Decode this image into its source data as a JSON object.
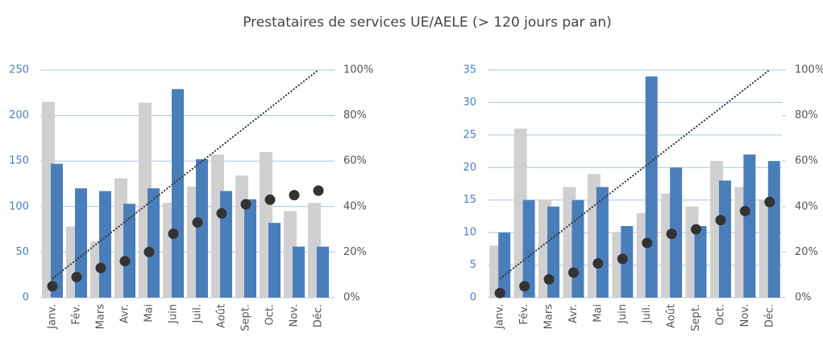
{
  "title": "Prestataires de services UE/AELE (> 120 jours par an)",
  "chart_data": [
    {
      "type": "bar",
      "categories": [
        "Janv.",
        "Fév.",
        "Mars",
        "Avr.",
        "Mai",
        "Juin",
        "Juil.",
        "Août",
        "Sept.",
        "Oct.",
        "Nov.",
        "Déc."
      ],
      "ylim": [
        0,
        250
      ],
      "yticks": [
        0,
        50,
        100,
        150,
        200,
        250
      ],
      "y2lim": [
        0,
        100
      ],
      "y2ticks": [
        {
          "value": 0,
          "label": "0%"
        },
        {
          "value": 20,
          "label": "20%"
        },
        {
          "value": 40,
          "label": "40%"
        },
        {
          "value": 60,
          "label": "60%"
        },
        {
          "value": 80,
          "label": "80%"
        },
        {
          "value": 100,
          "label": "100%"
        }
      ],
      "grid": true,
      "series": [
        {
          "type": "bar",
          "color": "#d0d0d0",
          "values": [
            215,
            78,
            62,
            131,
            214,
            104,
            122,
            157,
            134,
            160,
            95,
            104
          ]
        },
        {
          "type": "bar",
          "color": "#4a7ebb",
          "values": [
            147,
            120,
            117,
            103,
            120,
            229,
            152,
            117,
            108,
            82,
            56,
            56
          ]
        },
        {
          "type": "line",
          "axis": "y2",
          "color": "#333333",
          "values": [
            8.3,
            16.7,
            25,
            33.3,
            41.7,
            50,
            58.3,
            66.7,
            75,
            83.3,
            91.7,
            100
          ]
        },
        {
          "type": "scatter",
          "axis": "y2",
          "color": "#333333",
          "values": [
            5,
            9,
            13,
            16,
            20,
            28,
            33,
            37,
            41,
            43,
            45,
            47
          ]
        }
      ]
    },
    {
      "type": "bar",
      "categories": [
        "Janv.",
        "Fév.",
        "Mars",
        "Avr.",
        "Mai",
        "Juin",
        "Juil.",
        "Août",
        "Sept.",
        "Oct.",
        "Nov.",
        "Déc."
      ],
      "ylim": [
        0,
        35
      ],
      "yticks": [
        0,
        5,
        10,
        15,
        20,
        25,
        30,
        35
      ],
      "y2lim": [
        0,
        100
      ],
      "y2ticks": [
        {
          "value": 0,
          "label": "0%"
        },
        {
          "value": 20,
          "label": "20%"
        },
        {
          "value": 40,
          "label": "40%"
        },
        {
          "value": 60,
          "label": "60%"
        },
        {
          "value": 80,
          "label": "80%"
        },
        {
          "value": 100,
          "label": "100%"
        }
      ],
      "grid": true,
      "series": [
        {
          "type": "bar",
          "color": "#d0d0d0",
          "values": [
            8,
            26,
            15,
            17,
            19,
            10,
            13,
            16,
            14,
            21,
            17,
            15
          ]
        },
        {
          "type": "bar",
          "color": "#4a7ebb",
          "values": [
            10,
            15,
            14,
            15,
            17,
            11,
            34,
            20,
            11,
            18,
            22,
            21
          ]
        },
        {
          "type": "line",
          "axis": "y2",
          "color": "#333333",
          "values": [
            8.3,
            16.7,
            25,
            33.3,
            41.7,
            50,
            58.3,
            66.7,
            75,
            83.3,
            91.7,
            100
          ]
        },
        {
          "type": "scatter",
          "axis": "y2",
          "color": "#333333",
          "values": [
            2,
            5,
            8,
            11,
            15,
            17,
            24,
            28,
            30,
            34,
            38,
            42
          ]
        }
      ]
    }
  ]
}
